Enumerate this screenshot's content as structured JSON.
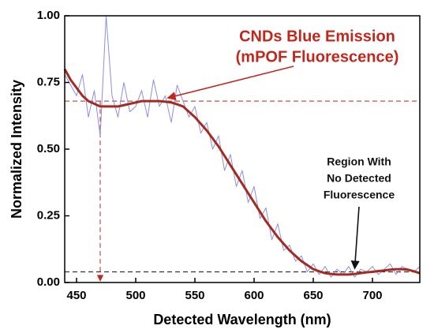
{
  "chart_data": {
    "type": "line",
    "xlabel": "Detected Wavelength (nm)",
    "ylabel": "Normalized Intensity",
    "x": [
      440,
      445,
      450,
      455,
      460,
      465,
      470,
      475,
      480,
      485,
      490,
      495,
      500,
      505,
      510,
      515,
      520,
      525,
      530,
      535,
      540,
      545,
      550,
      555,
      560,
      565,
      570,
      575,
      580,
      585,
      590,
      595,
      600,
      605,
      610,
      615,
      620,
      625,
      630,
      635,
      640,
      645,
      650,
      655,
      660,
      665,
      670,
      675,
      680,
      685,
      690,
      695,
      700,
      705,
      710,
      715,
      720,
      725,
      730,
      735,
      740
    ],
    "series": [
      {
        "color": "#8a8fe0",
        "width": 1,
        "values": [
          0.78,
          0.74,
          0.7,
          0.78,
          0.62,
          0.72,
          0.55,
          1.0,
          0.7,
          0.62,
          0.75,
          0.64,
          0.66,
          0.72,
          0.62,
          0.76,
          0.66,
          0.7,
          0.6,
          0.74,
          0.68,
          0.62,
          0.66,
          0.56,
          0.6,
          0.5,
          0.55,
          0.42,
          0.48,
          0.36,
          0.42,
          0.3,
          0.36,
          0.24,
          0.28,
          0.16,
          0.22,
          0.12,
          0.14,
          0.08,
          0.1,
          0.04,
          0.07,
          0.03,
          0.06,
          0.02,
          0.05,
          0.03,
          0.06,
          0.02,
          0.05,
          0.04,
          0.06,
          0.03,
          0.05,
          0.07,
          0.03,
          0.06,
          0.05,
          0.04,
          0.06
        ]
      },
      {
        "color": "#a52a1f",
        "width": 3,
        "values": [
          0.8,
          0.76,
          0.73,
          0.7,
          0.68,
          0.67,
          0.66,
          0.66,
          0.66,
          0.66,
          0.665,
          0.67,
          0.675,
          0.68,
          0.68,
          0.68,
          0.68,
          0.678,
          0.675,
          0.668,
          0.66,
          0.64,
          0.62,
          0.595,
          0.57,
          0.54,
          0.51,
          0.475,
          0.44,
          0.405,
          0.37,
          0.335,
          0.3,
          0.265,
          0.23,
          0.2,
          0.17,
          0.145,
          0.12,
          0.1,
          0.08,
          0.065,
          0.05,
          0.042,
          0.035,
          0.032,
          0.03,
          0.03,
          0.03,
          0.032,
          0.035,
          0.038,
          0.04,
          0.043,
          0.045,
          0.048,
          0.05,
          0.05,
          0.048,
          0.042,
          0.035
        ]
      }
    ],
    "xlim": [
      440,
      740
    ],
    "ylim": [
      0,
      1
    ],
    "xticks": [
      450,
      500,
      550,
      600,
      650,
      700
    ],
    "yticks": [
      {
        "value": 0,
        "label": "0.00"
      },
      {
        "value": 0.25,
        "label": "0.25"
      },
      {
        "value": 0.5,
        "label": "0.50"
      },
      {
        "value": 0.75,
        "label": "0.75"
      },
      {
        "value": 1,
        "label": "1.00"
      }
    ],
    "hlines": [
      {
        "value": 0.68,
        "color": "#c0504d"
      },
      {
        "value": 0.04,
        "color": "#333333"
      }
    ],
    "vlines": [
      {
        "value": 470,
        "color": "#c0504d"
      }
    ],
    "annotations": [
      {
        "lines": [
          "CNDs Blue Emission",
          "(mPOF Fluorescence)"
        ],
        "x": 527,
        "y": 0.68,
        "color": "#c0281e"
      },
      {
        "lines": [
          "Region With",
          "No Detected",
          "Fluorescence"
        ],
        "x": 685,
        "y": 0.04,
        "color": "#111111"
      }
    ]
  }
}
